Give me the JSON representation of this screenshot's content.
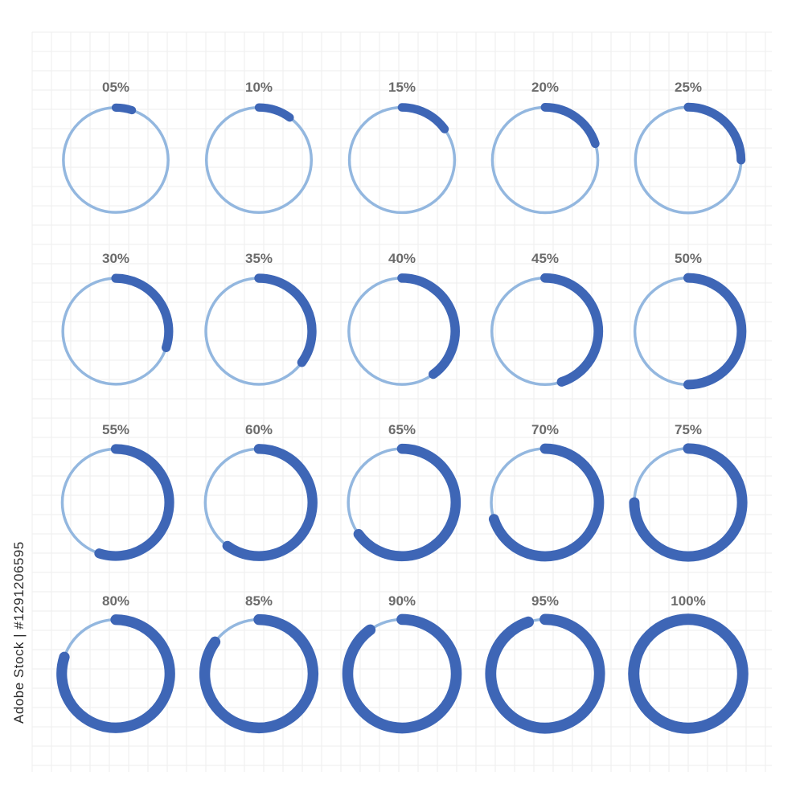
{
  "colors": {
    "track": "#93b7df",
    "progress": "#3e66b6",
    "label": "#6b6b6b",
    "grid": "#eeeeee",
    "background": "#ffffff"
  },
  "indicators": [
    {
      "label": "05%",
      "value": 5
    },
    {
      "label": "10%",
      "value": 10
    },
    {
      "label": "15%",
      "value": 15
    },
    {
      "label": "20%",
      "value": 20
    },
    {
      "label": "25%",
      "value": 25
    },
    {
      "label": "30%",
      "value": 30
    },
    {
      "label": "35%",
      "value": 35
    },
    {
      "label": "40%",
      "value": 40
    },
    {
      "label": "45%",
      "value": 45
    },
    {
      "label": "50%",
      "value": 50
    },
    {
      "label": "55%",
      "value": 55
    },
    {
      "label": "60%",
      "value": 60
    },
    {
      "label": "65%",
      "value": 65
    },
    {
      "label": "70%",
      "value": 70
    },
    {
      "label": "75%",
      "value": 75
    },
    {
      "label": "80%",
      "value": 80
    },
    {
      "label": "85%",
      "value": 85
    },
    {
      "label": "90%",
      "value": 90
    },
    {
      "label": "95%",
      "value": 95
    },
    {
      "label": "100%",
      "value": 100
    }
  ],
  "stock_id": "Adobe Stock | #1291206595"
}
